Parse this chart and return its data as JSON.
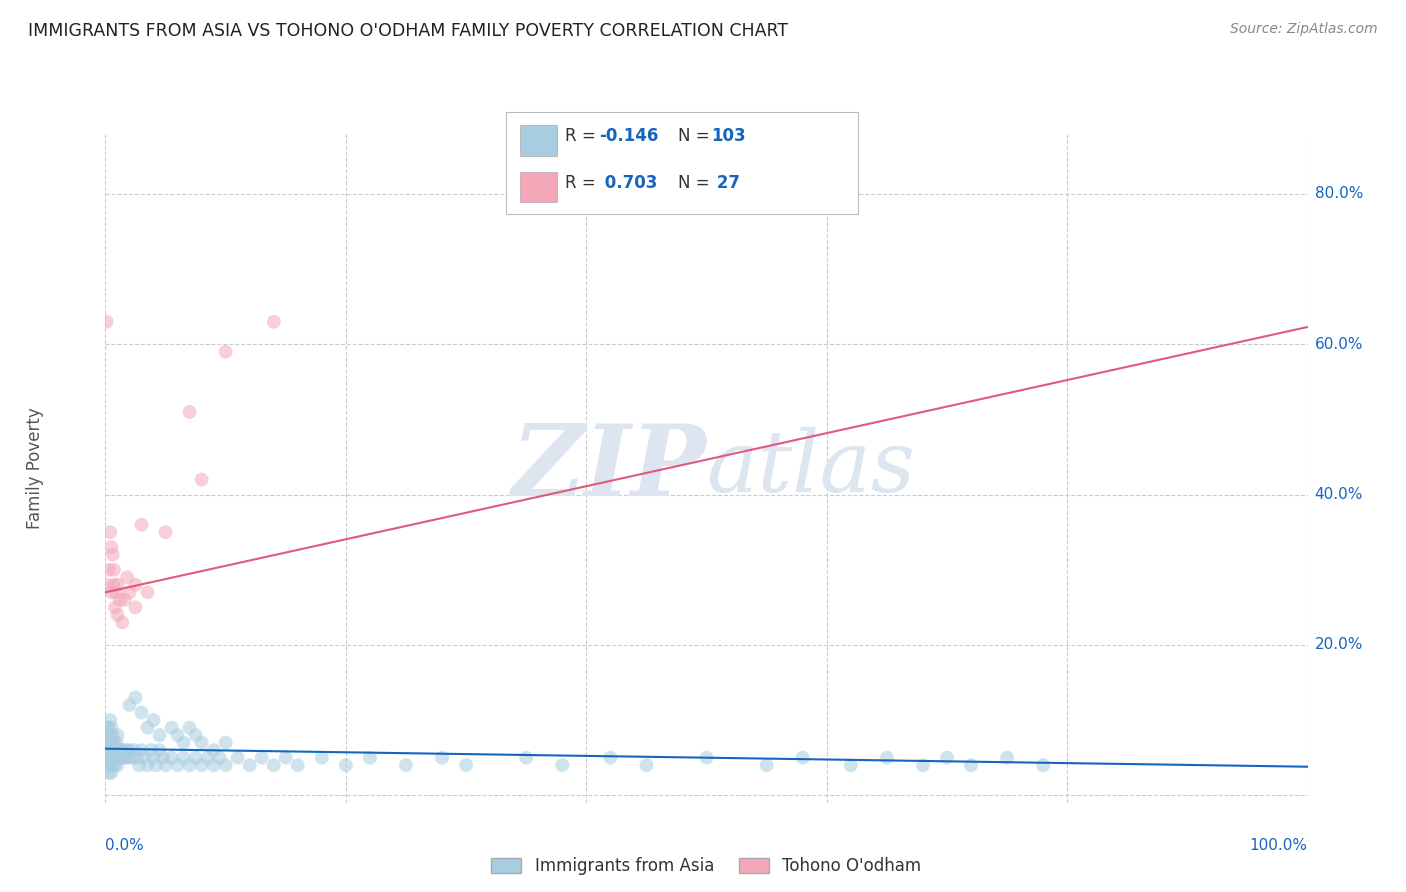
{
  "title": "IMMIGRANTS FROM ASIA VS TOHONO O'ODHAM FAMILY POVERTY CORRELATION CHART",
  "source": "Source: ZipAtlas.com",
  "ylabel": "Family Poverty",
  "legend_label1": "Immigrants from Asia",
  "legend_label2": "Tohono O'odham",
  "r1": "-0.146",
  "n1": "103",
  "r2": "0.703",
  "n2": "27",
  "blue_color": "#a8cce0",
  "blue_line_color": "#1565c0",
  "pink_color": "#f4a7b9",
  "pink_line_color": "#e05a7a",
  "background_color": "#ffffff",
  "grid_color": "#cccccc",
  "watermark_color": "#dde5f0",
  "blue_scatter_x": [
    0.001,
    0.001,
    0.001,
    0.002,
    0.002,
    0.002,
    0.003,
    0.003,
    0.003,
    0.003,
    0.004,
    0.004,
    0.004,
    0.004,
    0.005,
    0.005,
    0.005,
    0.005,
    0.006,
    0.006,
    0.006,
    0.007,
    0.007,
    0.008,
    0.008,
    0.009,
    0.009,
    0.01,
    0.01,
    0.01,
    0.011,
    0.012,
    0.013,
    0.014,
    0.015,
    0.016,
    0.017,
    0.018,
    0.019,
    0.02,
    0.022,
    0.024,
    0.026,
    0.028,
    0.03,
    0.032,
    0.035,
    0.038,
    0.04,
    0.042,
    0.045,
    0.048,
    0.05,
    0.055,
    0.06,
    0.065,
    0.07,
    0.075,
    0.08,
    0.085,
    0.09,
    0.095,
    0.1,
    0.11,
    0.12,
    0.13,
    0.14,
    0.15,
    0.16,
    0.18,
    0.2,
    0.22,
    0.25,
    0.28,
    0.3,
    0.35,
    0.38,
    0.42,
    0.45,
    0.5,
    0.55,
    0.58,
    0.62,
    0.65,
    0.68,
    0.7,
    0.72,
    0.75,
    0.78,
    0.02,
    0.025,
    0.03,
    0.035,
    0.04,
    0.045,
    0.055,
    0.06,
    0.065,
    0.07,
    0.075,
    0.08,
    0.09,
    0.1
  ],
  "blue_scatter_y": [
    0.07,
    0.05,
    0.09,
    0.06,
    0.08,
    0.04,
    0.07,
    0.05,
    0.09,
    0.03,
    0.06,
    0.08,
    0.04,
    0.1,
    0.07,
    0.05,
    0.09,
    0.03,
    0.06,
    0.08,
    0.04,
    0.07,
    0.05,
    0.06,
    0.04,
    0.07,
    0.05,
    0.06,
    0.08,
    0.04,
    0.05,
    0.06,
    0.05,
    0.06,
    0.05,
    0.06,
    0.05,
    0.06,
    0.05,
    0.06,
    0.05,
    0.06,
    0.05,
    0.04,
    0.06,
    0.05,
    0.04,
    0.06,
    0.05,
    0.04,
    0.06,
    0.05,
    0.04,
    0.05,
    0.04,
    0.05,
    0.04,
    0.05,
    0.04,
    0.05,
    0.04,
    0.05,
    0.04,
    0.05,
    0.04,
    0.05,
    0.04,
    0.05,
    0.04,
    0.05,
    0.04,
    0.05,
    0.04,
    0.05,
    0.04,
    0.05,
    0.04,
    0.05,
    0.04,
    0.05,
    0.04,
    0.05,
    0.04,
    0.05,
    0.04,
    0.05,
    0.04,
    0.05,
    0.04,
    0.12,
    0.13,
    0.11,
    0.09,
    0.1,
    0.08,
    0.09,
    0.08,
    0.07,
    0.09,
    0.08,
    0.07,
    0.06,
    0.07
  ],
  "pink_scatter_x": [
    0.001,
    0.002,
    0.003,
    0.004,
    0.005,
    0.005,
    0.006,
    0.007,
    0.007,
    0.008,
    0.009,
    0.01,
    0.01,
    0.012,
    0.014,
    0.016,
    0.018,
    0.02,
    0.025,
    0.025,
    0.03,
    0.035,
    0.05,
    0.07,
    0.08,
    0.1,
    0.14
  ],
  "pink_scatter_y": [
    0.63,
    0.28,
    0.3,
    0.35,
    0.27,
    0.33,
    0.32,
    0.28,
    0.3,
    0.25,
    0.27,
    0.24,
    0.28,
    0.26,
    0.23,
    0.26,
    0.29,
    0.27,
    0.25,
    0.28,
    0.36,
    0.27,
    0.35,
    0.51,
    0.42,
    0.59,
    0.63
  ],
  "xlim": [
    0.0,
    1.0
  ],
  "ylim": [
    -0.01,
    0.88
  ],
  "blue_line_y_start": 0.062,
  "blue_line_y_end": 0.038,
  "pink_line_y_start": 0.27,
  "pink_line_y_end": 0.623,
  "marker_size": 100,
  "alpha": 0.55
}
